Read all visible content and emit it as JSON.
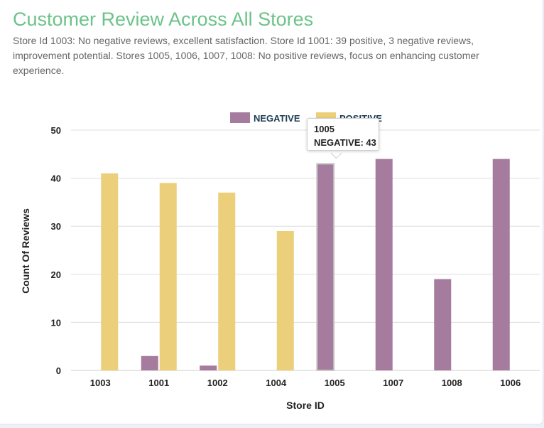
{
  "header": {
    "title": "Customer Review Across All Stores",
    "subtitle": "Store Id 1003: No negative reviews, excellent satisfaction. Store Id 1001: 39 positive, 3 negative reviews, improvement potential. Stores 1005, 1006, 1007, 1008: No positive reviews, focus on enhancing customer experience."
  },
  "tooltip": {
    "store": "1005",
    "detail": "NEGATIVE: 43"
  },
  "colors": {
    "negative": "#a67c9e",
    "positive": "#ebcf7a",
    "title": "#6cc389"
  },
  "chart_data": {
    "type": "bar",
    "xlabel": "Store ID",
    "ylabel": "Count Of Reviews",
    "ylim": [
      0,
      50
    ],
    "yticks": [
      0,
      10,
      20,
      30,
      40,
      50
    ],
    "grid": true,
    "legend_position": "top-center",
    "categories": [
      "1003",
      "1001",
      "1002",
      "1004",
      "1005",
      "1007",
      "1008",
      "1006"
    ],
    "series": [
      {
        "name": "NEGATIVE",
        "values": [
          0,
          3,
          1,
          0,
          43,
          44,
          19,
          44
        ]
      },
      {
        "name": "POSITIVE",
        "values": [
          41,
          39,
          37,
          29,
          0,
          0,
          0,
          0
        ]
      }
    ]
  }
}
